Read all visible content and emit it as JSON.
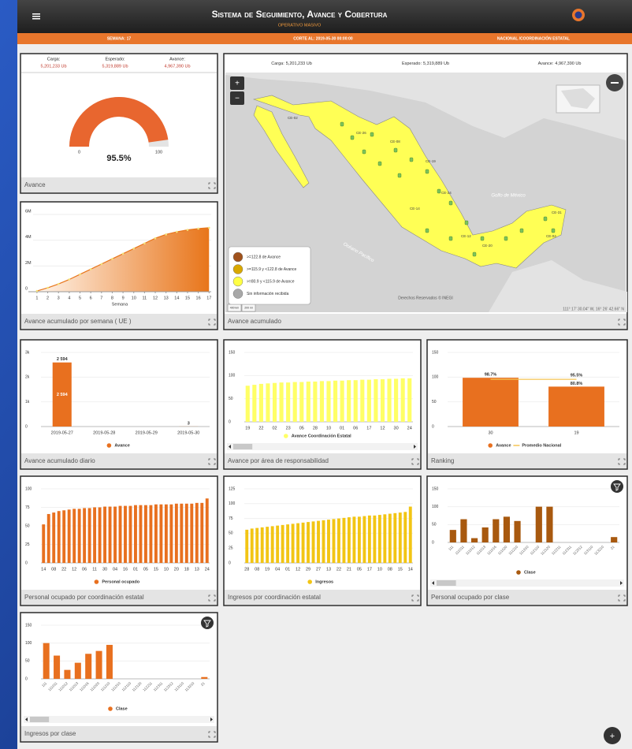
{
  "header": {
    "title": "Sistema de Seguimiento, Avance y Cobertura",
    "subtitle": "OPERATIVO MASIVO"
  },
  "status_bar": [
    "SEMANA: 17",
    "CORTE AL: 2019-05-30 00:00:00",
    "NACIONAL /COORDINACIÓN ESTATAL"
  ],
  "summary": [
    {
      "label": "Carga:",
      "value": "5,201,233 Ub"
    },
    {
      "label": "Esperado:",
      "value": "5,319,889 Ub"
    },
    {
      "label": "Avance:",
      "value": "4,967,390 Ub"
    }
  ],
  "map": {
    "title": "Avance acumulado",
    "controls": [
      "+",
      "−"
    ],
    "legend": [
      {
        "label": ">=122.8 de Avance",
        "color": "#a0521c"
      },
      {
        "label": ">=115.9 y <122.8 de Avance",
        "color": "#d9a800"
      },
      {
        "label": ">=80.9 y <115.9 de Avance",
        "color": "#ffff44"
      },
      {
        "label": "Sin información recibida",
        "color": "#a8a8a8"
      }
    ],
    "labels": [
      "Golfo de México",
      "Océano Pacífico"
    ],
    "state_labels": [
      "CE-02",
      "CE-26",
      "CE-08",
      "CE-19",
      "CE-24",
      "CE-14",
      "CE-12",
      "CE-20",
      "CE-04",
      "CE-31"
    ],
    "attribution": "Derechos Reservados © INEGI",
    "coordinates": "111° 17' 30.04\" W, 16° 26' 42.66\" N",
    "scale": [
      "400 km",
      "200 mi"
    ]
  },
  "fab": "+",
  "chart_data": [
    {
      "type": "gauge",
      "title": "Avance",
      "values": [
        95.5
      ],
      "value_labels": [
        "95.5%"
      ],
      "ylim": [
        0,
        100
      ],
      "yticks": [
        0,
        100
      ],
      "color": "#e8662f",
      "track_color": "#e4e4e4"
    },
    {
      "type": "area",
      "title": "Avance acumulado por semana ( UE )",
      "x": [
        1,
        2,
        3,
        4,
        5,
        6,
        7,
        8,
        9,
        10,
        11,
        12,
        13,
        14,
        15,
        16,
        17
      ],
      "values": [
        60000,
        300000,
        600000,
        950000,
        1350000,
        1750000,
        2150000,
        2550000,
        2950000,
        3350000,
        3750000,
        4150000,
        4450000,
        4650000,
        4800000,
        4900000,
        4967390
      ],
      "xlim": [
        0.2,
        17.2
      ],
      "xticks": [
        1,
        2,
        3,
        4,
        5,
        6,
        7,
        8,
        9,
        10,
        11,
        12,
        13,
        14,
        15,
        16,
        17
      ],
      "xlabel": "Semana",
      "ylim": [
        0,
        6000000
      ],
      "yticks": [
        0,
        {
          "value": 2000000,
          "label": "2M"
        },
        {
          "value": 4000000,
          "label": "4M"
        },
        {
          "value": 6000000,
          "label": "6M"
        }
      ],
      "color": "#e8751a",
      "grid": true
    },
    {
      "type": "bar",
      "title": "Avance acumulado diario",
      "categories": [
        "2019-05-27",
        "2019-05-28",
        "2019-05-29",
        "2019-05-30"
      ],
      "series": [
        {
          "name": "Avance",
          "color": "#e8701f",
          "values": [
            2594,
            0,
            0,
            3
          ],
          "value_labels": [
            "2 594",
            null,
            null,
            "3"
          ]
        }
      ],
      "ylim": [
        0,
        3000
      ],
      "yticks": [
        0,
        {
          "value": 1000,
          "label": "1k"
        },
        {
          "value": 2000,
          "label": "2k"
        },
        {
          "value": 3000,
          "label": "3k"
        }
      ],
      "grid": true
    },
    {
      "type": "bar",
      "title": "Avance por área de responsabilidad",
      "categories": [
        "19",
        null,
        "22",
        null,
        "02",
        null,
        "23",
        null,
        "05",
        null,
        "28",
        null,
        "10",
        null,
        "01",
        null,
        "06",
        null,
        "17",
        null,
        "12",
        null,
        "30",
        null,
        "24"
      ],
      "series": [
        {
          "name": "Avance Coordinación Estatal",
          "color": "#ffff66",
          "values": [
            78,
            80,
            82,
            83,
            84,
            85,
            85,
            86,
            86,
            87,
            87,
            88,
            88,
            89,
            89,
            90,
            90,
            91,
            91,
            92,
            92,
            93,
            93,
            94,
            94
          ]
        }
      ],
      "ylim": [
        0,
        150
      ],
      "yticks": [
        0,
        50,
        100,
        150
      ],
      "grid": true
    },
    {
      "type": "bar",
      "title": "Ranking",
      "categories": [
        "30",
        "19"
      ],
      "series": [
        {
          "name": "Avance",
          "color": "#e8701f",
          "values": [
            98.7,
            80.8
          ],
          "value_labels": [
            "98.7%",
            "80.8%"
          ]
        },
        {
          "name": "Promedio Nacional",
          "type": "line",
          "color": "#f6c453",
          "values": [
            95.5,
            95.5
          ],
          "value_labels": [
            null,
            "95.5%"
          ]
        }
      ],
      "ylim": [
        0,
        150
      ],
      "yticks": [
        0,
        50,
        100,
        150
      ],
      "grid": true
    },
    {
      "type": "bar",
      "title": "Personal ocupado por coordinación estatal",
      "categories": [
        "14",
        null,
        "08",
        null,
        "22",
        null,
        "12",
        null,
        "06",
        null,
        "11",
        null,
        "30",
        null,
        "04",
        null,
        "16",
        null,
        "01",
        null,
        "05",
        null,
        "15",
        null,
        "10",
        null,
        "20",
        null,
        "18",
        null,
        "13",
        null,
        "24"
      ],
      "series": [
        {
          "name": "Personal ocupado",
          "color": "#e8701f",
          "values": [
            52,
            66,
            68,
            70,
            71,
            72,
            73,
            73,
            74,
            74,
            75,
            75,
            76,
            76,
            76,
            77,
            77,
            77,
            78,
            78,
            78,
            78,
            79,
            79,
            79,
            79,
            80,
            80,
            80,
            80,
            81,
            81,
            87
          ]
        }
      ],
      "ylim": [
        0,
        100
      ],
      "yticks": [
        0,
        25,
        50,
        75,
        100
      ],
      "grid": true
    },
    {
      "type": "bar",
      "title": "Ingresos por coordinación estatal",
      "categories": [
        "28",
        null,
        "08",
        null,
        "19",
        null,
        "04",
        null,
        "01",
        null,
        "12",
        null,
        "29",
        null,
        "27",
        null,
        "13",
        null,
        "22",
        null,
        "21",
        null,
        "05",
        null,
        "17",
        null,
        "10",
        null,
        "08",
        null,
        "15",
        null,
        "14"
      ],
      "series": [
        {
          "name": "Ingresos",
          "color": "#f2c514",
          "values": [
            56,
            58,
            59,
            60,
            61,
            62,
            63,
            64,
            65,
            66,
            67,
            68,
            69,
            70,
            71,
            72,
            73,
            74,
            75,
            76,
            77,
            78,
            78,
            79,
            80,
            80,
            81,
            82,
            83,
            84,
            85,
            86,
            95
          ]
        }
      ],
      "ylim": [
        0,
        125
      ],
      "yticks": [
        0,
        25,
        50,
        75,
        100,
        125
      ],
      "grid": true
    },
    {
      "type": "bar",
      "title": "Personal ocupado por clase",
      "categories": [
        "111",
        "111011",
        "111012",
        "111013",
        "111016",
        "111020",
        "111210",
        "111310",
        "112110",
        "112120",
        "112211",
        "112311",
        "112312",
        "113110",
        "113210",
        "21"
      ],
      "series": [
        {
          "name": "Clase",
          "color": "#a8590f",
          "values": [
            35,
            65,
            12,
            42,
            65,
            72,
            60,
            0,
            100,
            100,
            0,
            0,
            0,
            0,
            0,
            15
          ]
        }
      ],
      "ylim": [
        0,
        150
      ],
      "yticks": [
        0,
        50,
        100,
        150
      ],
      "grid": true
    },
    {
      "type": "bar",
      "title": "Ingresos por clase",
      "categories": [
        "111",
        "111011",
        "111012",
        "111013",
        "111016",
        "111020",
        "111210",
        "111310",
        "112110",
        "112120",
        "112211",
        "112311",
        "112312",
        "113110",
        "113210",
        "21"
      ],
      "series": [
        {
          "name": "Clase",
          "color": "#e8701f",
          "values": [
            100,
            65,
            25,
            45,
            70,
            78,
            95,
            0,
            0,
            0,
            0,
            0,
            0,
            0,
            0,
            5
          ]
        }
      ],
      "ylim": [
        0,
        150
      ],
      "yticks": [
        0,
        50,
        100,
        150
      ],
      "grid": true
    }
  ]
}
